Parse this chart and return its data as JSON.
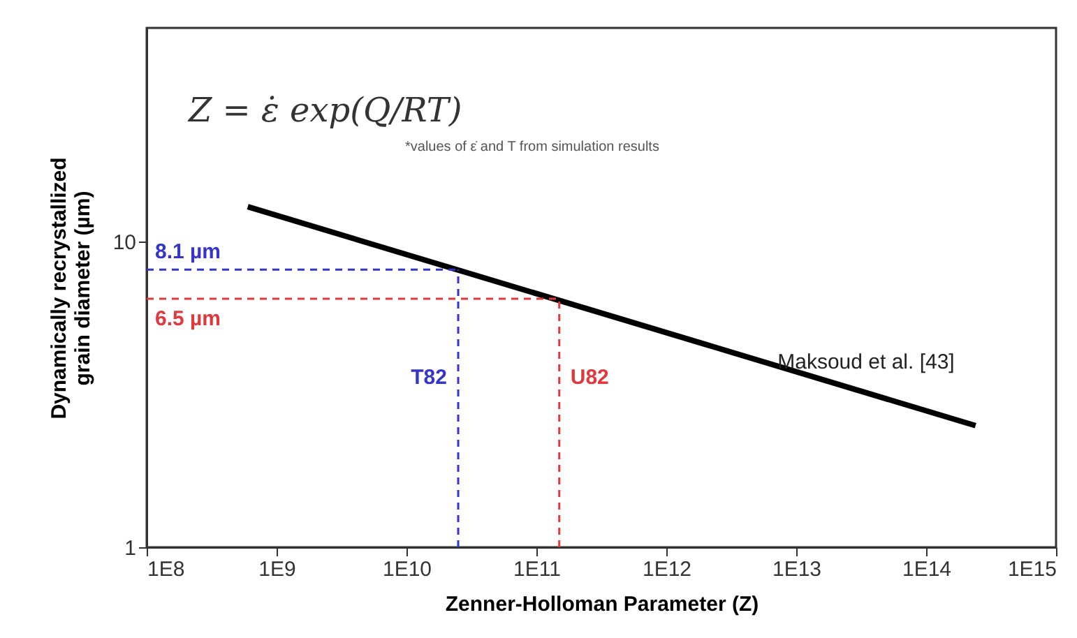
{
  "chart_data": {
    "type": "line",
    "xlabel": "Zenner-Holloman Parameter (Z)",
    "ylabel": "Dynamically recrystallized grain diameter (µm)",
    "log": "xy",
    "xlim": [
      100000000,
      1000000000000000
    ],
    "ylim": [
      1,
      50
    ],
    "xticks": [
      {
        "value": 100000000,
        "label": "1E8"
      },
      {
        "value": 1000000000,
        "label": "1E9"
      },
      {
        "value": 10000000000,
        "label": "1E10"
      },
      {
        "value": 100000000000,
        "label": "1E11"
      },
      {
        "value": 1000000000000,
        "label": "1E12"
      },
      {
        "value": 10000000000000,
        "label": "1E13"
      },
      {
        "value": 100000000000000,
        "label": "1E14"
      },
      {
        "value": 1000000000000000,
        "label": "1E15"
      }
    ],
    "yticks": [
      1,
      10
    ],
    "grid": false,
    "legend": false,
    "series": [
      {
        "name": "Maksoud et al. [43]",
        "color": "#000000",
        "x": [
          600000000,
          240000000000000
        ],
        "values": [
          13,
          2.5
        ]
      }
    ],
    "ref_lines": [
      {
        "axis": "y",
        "value": 8.1,
        "label": "8.1 µm",
        "color": "#3535c8",
        "line_style": "dashed"
      },
      {
        "axis": "y",
        "value": 6.5,
        "label": "6.5 µm",
        "color": "#e0383d",
        "line_style": "dashed"
      },
      {
        "axis": "x",
        "value": 25000000000,
        "label": "T82",
        "color": "#3535c8",
        "line_style": "dashed"
      },
      {
        "axis": "x",
        "value": 150000000000,
        "label": "U82",
        "color": "#e0383d",
        "line_style": "dashed"
      }
    ],
    "annotations": [
      "Z = ε̇ exp(Q/RT)",
      "*values of ε̇ and T from simulation results"
    ]
  }
}
